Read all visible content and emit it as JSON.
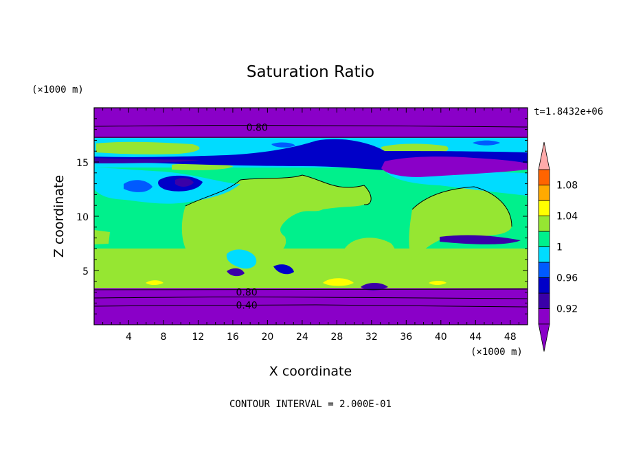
{
  "chart_data": {
    "type": "heatmap",
    "title": "Saturation Ratio",
    "xlabel": "X coordinate",
    "ylabel": "Z coordinate",
    "x_unit": "(×1000 m)",
    "y_unit": "(×1000 m)",
    "time_label": "t=1.8432e+06",
    "footer": "CONTOUR INTERVAL = 2.000E-01",
    "xlim": [
      0,
      50
    ],
    "ylim": [
      0,
      20
    ],
    "x_ticks": [
      4,
      8,
      12,
      16,
      20,
      24,
      28,
      32,
      36,
      40,
      44,
      48
    ],
    "y_ticks": [
      5,
      10,
      15
    ],
    "colorbar": {
      "labels": [
        0.92,
        0.96,
        1,
        1.04,
        1.08
      ],
      "levels": [
        0.9,
        0.92,
        0.94,
        0.96,
        0.98,
        1.0,
        1.02,
        1.04,
        1.06,
        1.08,
        1.1
      ],
      "colors": [
        "#8a00c8",
        "#3a00a8",
        "#0000c8",
        "#005aff",
        "#00dcff",
        "#00f08c",
        "#96e632",
        "#ffff00",
        "#ffaa00",
        "#ff6400",
        "#ff2828",
        "#ffaaaa"
      ],
      "extend": "both"
    },
    "contour_labels": [
      {
        "text": "0.80",
        "x": 18.8,
        "z": 18.2
      },
      {
        "text": "0.80",
        "x": 17.6,
        "z": 3.0
      },
      {
        "text": "0.40",
        "x": 17.6,
        "z": 1.8
      }
    ]
  }
}
